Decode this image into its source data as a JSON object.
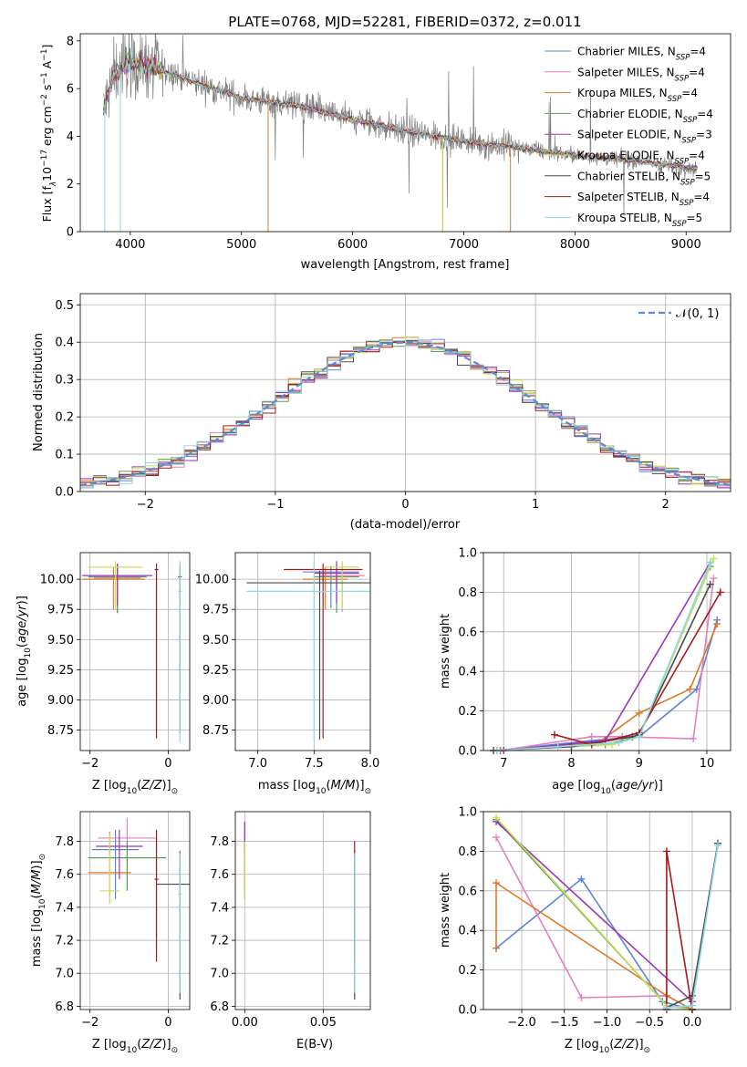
{
  "figure_title": "PLATE=0768, MJD=52281, FIBERID=0372, z=0.011",
  "series_colors": [
    "#5b84d8",
    "#e57fbf",
    "#dd7a2a",
    "#5f9e5a",
    "#9b35b8",
    "#c8e05a",
    "#4a4a4a",
    "#a81919",
    "#8ed8e6"
  ],
  "model_labels": [
    {
      "main": "Chabrier MILES, N",
      "sub": "SSP",
      "tail": "=4"
    },
    {
      "main": "Salpeter MILES, N",
      "sub": "SSP",
      "tail": "=4"
    },
    {
      "main": "Kroupa MILES, N",
      "sub": "SSP",
      "tail": "=4"
    },
    {
      "main": "Chabrier ELODIE, N",
      "sub": "SSP",
      "tail": "=4"
    },
    {
      "main": "Salpeter ELODIE, N",
      "sub": "SSP",
      "tail": "=3"
    },
    {
      "main": "Kroupa ELODIE, N",
      "sub": "SSP",
      "tail": "=4"
    },
    {
      "main": "Chabrier STELIB, N",
      "sub": "SSP",
      "tail": "=5"
    },
    {
      "main": "Salpeter STELIB, N",
      "sub": "SSP",
      "tail": "=4"
    },
    {
      "main": "Kroupa STELIB, N",
      "sub": "SSP",
      "tail": "=5"
    }
  ],
  "chart_data": [
    {
      "id": "spectrum",
      "type": "line",
      "xlabel": "wavelength [Angstrom, rest frame]",
      "ylabel_prefix": "Flux [f",
      "xlim": [
        3550,
        9400
      ],
      "ylim": [
        0,
        8.3
      ],
      "xticks": [
        4000,
        5000,
        6000,
        7000,
        8000,
        9000
      ],
      "yticks": [
        0,
        2,
        4,
        6,
        8
      ],
      "continuum_points": [
        [
          3760,
          5.1
        ],
        [
          3850,
          6.6
        ],
        [
          4000,
          7.1
        ],
        [
          4200,
          6.9
        ],
        [
          4500,
          6.4
        ],
        [
          5000,
          5.6
        ],
        [
          5500,
          5.3
        ],
        [
          6000,
          4.7
        ],
        [
          6500,
          4.2
        ],
        [
          7000,
          3.8
        ],
        [
          7500,
          3.5
        ],
        [
          8000,
          3.2
        ],
        [
          8500,
          3.0
        ],
        [
          9000,
          2.7
        ],
        [
          9100,
          2.65
        ]
      ]
    },
    {
      "id": "residuals",
      "type": "line",
      "xlabel": "(data-model)/error",
      "ylabel": "Normed distribution",
      "xlim": [
        -2.5,
        2.5
      ],
      "ylim": [
        0,
        0.53
      ],
      "xticks": [
        -2,
        -1,
        0,
        1,
        2
      ],
      "yticks": [
        0,
        0.1,
        0.2,
        0.3,
        0.4,
        0.5
      ],
      "legend": "𝒩(0, 1)",
      "legend_position": "top-right",
      "grid": true
    },
    {
      "id": "age_vs_Z",
      "type": "scatter",
      "xlabel_prefix": "Z [log",
      "ylabel_prefix": "age  [log",
      "xlim": [
        -2.25,
        0.55
      ],
      "ylim": [
        8.58,
        10.22
      ],
      "xticks": [
        -2,
        0
      ],
      "yticks": [
        8.75,
        9.0,
        9.25,
        9.5,
        9.75,
        10.0
      ],
      "points": [
        {
          "x": -1.3,
          "y": 10.02,
          "xe": 0.75,
          "ye_lo": 0.3,
          "ye_hi": 0.1
        },
        {
          "x": -1.3,
          "y": 10.01,
          "xe": 0.6,
          "ye_lo": 0.28,
          "ye_hi": 0.12
        },
        {
          "x": -1.4,
          "y": 10.0,
          "xe": 0.8,
          "ye_lo": 0.25,
          "ye_hi": 0.1
        },
        {
          "x": -1.3,
          "y": 10.02,
          "xe": 0.7,
          "ye_lo": 0.3,
          "ye_hi": 0.1
        },
        {
          "x": -1.3,
          "y": 10.03,
          "xe": 0.9,
          "ye_lo": 0.25,
          "ye_hi": 0.1
        },
        {
          "x": -1.35,
          "y": 10.1,
          "xe": 0.7,
          "ye_lo": 0.35,
          "ye_hi": 0.05
        },
        {
          "x": 0.3,
          "y": 10.02,
          "xe": 0.05,
          "ye_lo": 1.3,
          "ye_hi": 0.1
        },
        {
          "x": -0.3,
          "y": 10.08,
          "xe": 0.05,
          "ye_lo": 1.4,
          "ye_hi": 0.05
        },
        {
          "x": 0.3,
          "y": 9.9,
          "xe": 0.05,
          "ye_lo": 1.25,
          "ye_hi": 0.25
        }
      ]
    },
    {
      "id": "age_vs_mass",
      "type": "scatter",
      "xlabel_prefix": "mass [log",
      "xlim": [
        6.8,
        8.0
      ],
      "ylim": [
        8.58,
        10.22
      ],
      "xticks": [
        7.0,
        7.5,
        8.0
      ],
      "yticks": [
        8.75,
        9.0,
        9.25,
        9.5,
        9.75,
        10.0
      ],
      "points": [
        {
          "x": 7.65,
          "y": 10.06,
          "xe": 0.25,
          "ye_lo": 0.3,
          "ye_hi": 0.05
        },
        {
          "x": 7.75,
          "y": 10.03,
          "xe": 0.2,
          "ye_lo": 0.3,
          "ye_hi": 0.1
        },
        {
          "x": 7.6,
          "y": 10.0,
          "xe": 0.2,
          "ye_lo": 0.25,
          "ye_hi": 0.1
        },
        {
          "x": 7.7,
          "y": 10.02,
          "xe": 0.2,
          "ye_lo": 0.3,
          "ye_hi": 0.1
        },
        {
          "x": 7.7,
          "y": 10.05,
          "xe": 0.2,
          "ye_lo": 0.25,
          "ye_hi": 0.1
        },
        {
          "x": 7.75,
          "y": 10.1,
          "xe": 0.15,
          "ye_lo": 0.35,
          "ye_hi": 0.05
        },
        {
          "x": 7.55,
          "y": 9.97,
          "xe": 0.65,
          "ye_lo": 1.3,
          "ye_hi": 0.1
        },
        {
          "x": 7.58,
          "y": 10.08,
          "xe": 0.35,
          "ye_lo": 1.4,
          "ye_hi": 0.05
        },
        {
          "x": 7.5,
          "y": 9.9,
          "xe": 0.6,
          "ye_lo": 1.25,
          "ye_hi": 0.25
        }
      ]
    },
    {
      "id": "massweight_vs_age",
      "type": "line",
      "xlabel_prefix": "age  [log",
      "ylabel": "mass weight",
      "xlim": [
        6.7,
        10.35
      ],
      "ylim": [
        0,
        1.0
      ],
      "xticks": [
        7,
        8,
        9,
        10
      ],
      "yticks": [
        0.0,
        0.2,
        0.4,
        0.6,
        0.8,
        1.0
      ],
      "grid": true,
      "series": [
        {
          "points": [
            [
              6.9,
              0.0
            ],
            [
              8.3,
              0.05
            ],
            [
              9.0,
              0.07
            ],
            [
              9.85,
              0.31
            ],
            [
              10.15,
              0.66
            ]
          ]
        },
        {
          "points": [
            [
              6.95,
              0.0
            ],
            [
              8.3,
              0.07
            ],
            [
              8.75,
              0.07
            ],
            [
              9.8,
              0.06
            ],
            [
              10.1,
              0.87
            ]
          ]
        },
        {
          "points": [
            [
              6.95,
              0.0
            ],
            [
              8.4,
              0.04
            ],
            [
              9.0,
              0.19
            ],
            [
              9.75,
              0.31
            ],
            [
              10.15,
              0.64
            ]
          ]
        },
        {
          "points": [
            [
              6.9,
              0.0
            ],
            [
              8.5,
              0.03
            ],
            [
              9.0,
              0.07
            ],
            [
              10.05,
              0.93
            ]
          ]
        },
        {
          "points": [
            [
              7.0,
              0.0
            ],
            [
              8.5,
              0.05
            ],
            [
              10.05,
              0.95
            ]
          ]
        },
        {
          "points": [
            [
              6.9,
              0.0
            ],
            [
              8.6,
              0.03
            ],
            [
              9.0,
              0.07
            ],
            [
              10.1,
              0.97
            ]
          ]
        },
        {
          "points": [
            [
              6.85,
              0.0
            ],
            [
              8.0,
              0.02
            ],
            [
              8.9,
              0.07
            ],
            [
              9.0,
              0.08
            ],
            [
              10.05,
              0.84
            ]
          ]
        },
        {
          "points": [
            [
              7.75,
              0.08
            ],
            [
              8.3,
              0.03
            ],
            [
              9.0,
              0.09
            ],
            [
              10.2,
              0.8
            ]
          ]
        },
        {
          "points": [
            [
              6.9,
              0.0
            ],
            [
              7.8,
              0.02
            ],
            [
              8.7,
              0.04
            ],
            [
              9.0,
              0.07
            ],
            [
              10.05,
              0.95
            ]
          ]
        }
      ]
    },
    {
      "id": "mass_vs_Z",
      "type": "scatter",
      "xlabel_prefix": "Z [log",
      "ylabel_prefix": "mass [log",
      "xlim": [
        -2.25,
        0.55
      ],
      "ylim": [
        6.78,
        7.98
      ],
      "xticks": [
        -2,
        0
      ],
      "yticks": [
        6.8,
        7.0,
        7.2,
        7.4,
        7.6,
        7.8
      ],
      "points": [
        {
          "x": -1.35,
          "y": 7.75,
          "xe": 0.6,
          "ye_lo": 0.3,
          "ye_hi": 0.12
        },
        {
          "x": -1.05,
          "y": 7.82,
          "xe": 0.75,
          "ye_lo": 0.3,
          "ye_hi": 0.12
        },
        {
          "x": -1.5,
          "y": 7.61,
          "xe": 0.55,
          "ye_lo": 0.15,
          "ye_hi": 0.25
        },
        {
          "x": -1.05,
          "y": 7.7,
          "xe": 1.0,
          "ye_lo": 0.2,
          "ye_hi": 0.1
        },
        {
          "x": -1.25,
          "y": 7.77,
          "xe": 0.6,
          "ye_lo": 0.2,
          "ye_hi": 0.1
        },
        {
          "x": -1.5,
          "y": 7.5,
          "xe": 0.25,
          "ye_lo": 0.08,
          "ye_hi": 0.35
        },
        {
          "x": 0.3,
          "y": 7.54,
          "xe": 0.6,
          "ye_lo": 0.7,
          "ye_hi": 0.2
        },
        {
          "x": -0.3,
          "y": 7.57,
          "xe": 0.05,
          "ye_lo": 0.5,
          "ye_hi": 0.3
        },
        {
          "x": 0.3,
          "y": 7.48,
          "xe": 0.05,
          "ye_lo": 0.6,
          "ye_hi": 0.25
        }
      ]
    },
    {
      "id": "mass_vs_ebv",
      "type": "scatter",
      "xlabel": "E(B-V)",
      "xlim": [
        -0.006,
        0.08
      ],
      "ylim": [
        6.78,
        7.98
      ],
      "xticks": [
        0.0,
        0.05
      ],
      "xtick_labels": [
        "0.00",
        "0.05"
      ],
      "yticks": [
        6.8,
        7.0,
        7.2,
        7.4,
        7.6,
        7.8
      ],
      "points": [
        {
          "x": 0.0,
          "y": 7.7,
          "xe": 0.0,
          "ye_lo": 0.25,
          "ye_hi": 0.15
        },
        {
          "x": 0.0,
          "y": 7.82,
          "xe": 0.0,
          "ye_lo": 0.3,
          "ye_hi": 0.1
        },
        {
          "x": 0.0,
          "y": 7.6,
          "xe": 0.0,
          "ye_lo": 0.1,
          "ye_hi": 0.2
        },
        {
          "x": 0.0,
          "y": 7.7,
          "xe": 0.0,
          "ye_lo": 0.2,
          "ye_hi": 0.1
        },
        {
          "x": 0.0,
          "y": 7.82,
          "xe": 0.0,
          "ye_lo": 0.1,
          "ye_hi": 0.1
        },
        {
          "x": 0.0,
          "y": 7.5,
          "xe": 0.0,
          "ye_lo": 0.05,
          "ye_hi": 0.3
        },
        {
          "x": 0.07,
          "y": 7.54,
          "xe": 0.0,
          "ye_lo": 0.7,
          "ye_hi": 0.2
        },
        {
          "x": 0.07,
          "y": 7.57,
          "xe": 0.0,
          "ye_lo": 0.5,
          "ye_hi": 0.23
        },
        {
          "x": 0.07,
          "y": 7.48,
          "xe": 0.0,
          "ye_lo": 0.6,
          "ye_hi": 0.25
        }
      ]
    },
    {
      "id": "massweight_vs_Z",
      "type": "line",
      "xlabel_prefix": "Z [log",
      "ylabel": "mass weight",
      "xlim": [
        -2.45,
        0.45
      ],
      "ylim": [
        0,
        1.0
      ],
      "xticks": [
        -2.0,
        -1.5,
        -1.0,
        -0.5,
        0.0
      ],
      "xtick_labels": [
        "−2.0",
        "−1.5",
        "−1.0",
        "−0.5",
        "0.0"
      ],
      "yticks": [
        0.0,
        0.2,
        0.4,
        0.6,
        0.8,
        1.0
      ],
      "grid": true,
      "series": [
        {
          "points": [
            [
              -2.3,
              0.31
            ],
            [
              -1.3,
              0.66
            ],
            [
              -0.35,
              0.04
            ],
            [
              0.0,
              0.0
            ]
          ]
        },
        {
          "points": [
            [
              -2.3,
              0.87
            ],
            [
              -1.3,
              0.06
            ],
            [
              -0.3,
              0.07
            ],
            [
              0.0,
              0.0
            ]
          ]
        },
        {
          "points": [
            [
              -2.3,
              0.31
            ],
            [
              -2.3,
              0.64
            ],
            [
              -0.3,
              0.07
            ],
            [
              0.0,
              0.0
            ]
          ]
        },
        {
          "points": [
            [
              -2.3,
              0.96
            ],
            [
              -0.3,
              0.02
            ],
            [
              0.0,
              0.0
            ]
          ]
        },
        {
          "points": [
            [
              -2.3,
              0.95
            ],
            [
              0.0,
              0.04
            ]
          ]
        },
        {
          "points": [
            [
              -2.3,
              0.97
            ],
            [
              -0.3,
              0.02
            ],
            [
              0.0,
              0.0
            ]
          ]
        },
        {
          "points": [
            [
              -0.3,
              0.01
            ],
            [
              0.0,
              0.07
            ],
            [
              0.3,
              0.84
            ]
          ]
        },
        {
          "points": [
            [
              -0.3,
              0.0
            ],
            [
              -0.3,
              0.8
            ],
            [
              0.0,
              0.0
            ]
          ]
        },
        {
          "points": [
            [
              -0.3,
              0.01
            ],
            [
              0.0,
              0.02
            ],
            [
              0.3,
              0.83
            ]
          ]
        }
      ]
    }
  ]
}
